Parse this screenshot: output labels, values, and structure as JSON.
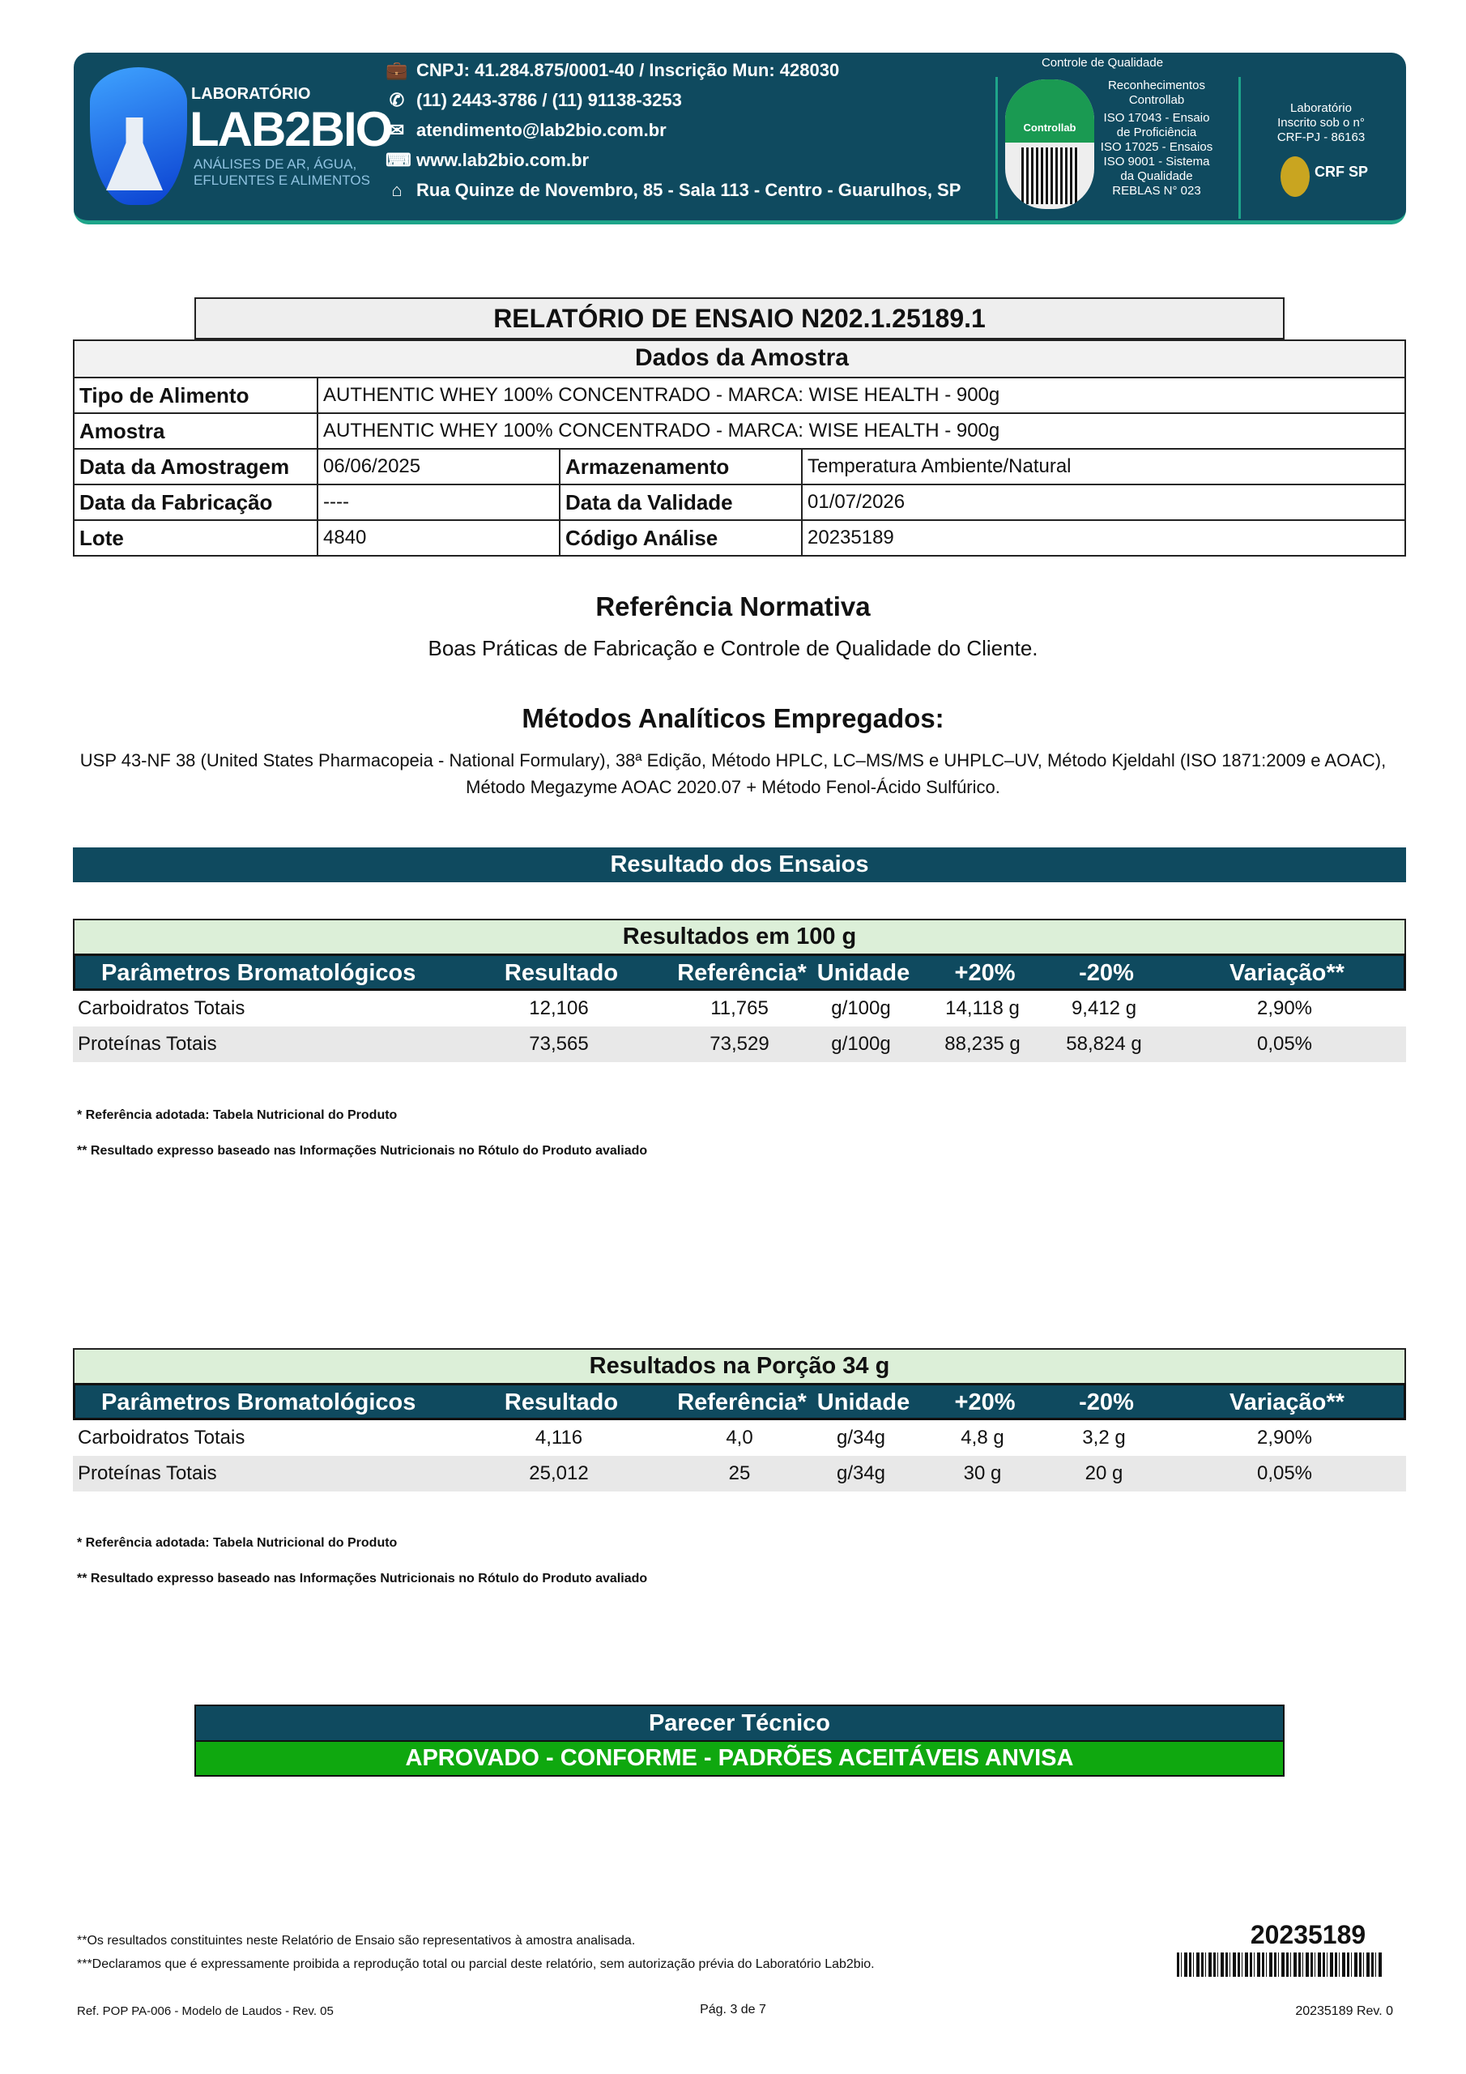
{
  "header": {
    "logo": {
      "line1": "LABORATÓRIO",
      "line2": "LAB2BIO",
      "line3": "ANÁLISES DE AR, ÁGUA,",
      "line4": "EFLUENTES E ALIMENTOS"
    },
    "contacts": [
      {
        "icon": "briefcase-icon",
        "text": "CNPJ: 41.284.875/0001-40  / Inscrição Mun: 428030"
      },
      {
        "icon": "phone-icon",
        "text": "(11) 2443-3786 / (11) 91138-3253"
      },
      {
        "icon": "mail-icon",
        "text": "atendimento@lab2bio.com.br"
      },
      {
        "icon": "web-icon",
        "text": "www.lab2bio.com.br"
      },
      {
        "icon": "home-icon",
        "text": "Rua Quinze de Novembro, 85 - Sala 113 - Centro - Guarulhos, SP"
      }
    ],
    "quality_title": "Controle de Qualidade",
    "controllab": "Controllab",
    "recognitions": [
      "Reconhecimentos",
      "Controllab",
      "ISO 17043 - Ensaio",
      "de Proficiência",
      "ISO 17025 - Ensaios",
      "ISO 9001 - Sistema",
      "da Qualidade",
      "REBLAS N° 023"
    ],
    "crf": [
      "Laboratório",
      "Inscrito sob o n°",
      "CRF-PJ - 86163"
    ],
    "crf_logo": "CRF SP"
  },
  "report_title": "RELATÓRIO DE ENSAIO N202.1.25189.1",
  "sample": {
    "title": "Dados da Amostra",
    "tipo_label": "Tipo de Alimento",
    "tipo": "AUTHENTIC WHEY 100% CONCENTRADO - MARCA: WISE HEALTH - 900g",
    "amostra_label": "Amostra",
    "amostra": "AUTHENTIC WHEY 100% CONCENTRADO - MARCA: WISE HEALTH - 900g",
    "amostragem_label": "Data da Amostragem",
    "amostragem": "06/06/2025",
    "armazenamento_label": "Armazenamento",
    "armazenamento": "Temperatura Ambiente/Natural",
    "fabricacao_label": "Data da Fabricação",
    "fabricacao": "----",
    "validade_label": "Data da Validade",
    "validade": "01/07/2026",
    "lote_label": "Lote",
    "lote": "4840",
    "codigo_label": "Código Análise",
    "codigo": "20235189"
  },
  "referencia": {
    "title": "Referência Normativa",
    "text": "Boas Práticas de Fabricação e Controle de Qualidade do Cliente."
  },
  "metodos": {
    "title": "Métodos Analíticos Empregados:",
    "line1": "USP 43-NF 38 (United States Pharmacopeia - National Formulary), 38ª Edição, Método HPLC, LC–MS/MS e UHPLC–UV, Método Kjeldahl (ISO 1871:2009 e AOAC),",
    "line2": "Método Megazyme AOAC 2020.07 + Método Fenol-Ácido Sulfúrico."
  },
  "results_bar": "Resultado dos Ensaios",
  "columns": [
    "Parâmetros Bromatológicos",
    "Resultado",
    "Referência*",
    "Unidade",
    "+20%",
    "-20%",
    "Variação**"
  ],
  "tables": [
    {
      "title": "Resultados em 100 g",
      "rows": [
        [
          "Carboidratos Totais",
          "12,106",
          "11,765",
          "g/100g",
          "14,118 g",
          "9,412 g",
          "2,90%"
        ],
        [
          "Proteínas Totais",
          "73,565",
          "73,529",
          "g/100g",
          "88,235 g",
          "58,824 g",
          "0,05%"
        ]
      ]
    },
    {
      "title": "Resultados na Porção 34 g",
      "rows": [
        [
          "Carboidratos Totais",
          "4,116",
          "4,0",
          "g/34g",
          "4,8 g",
          "3,2 g",
          "2,90%"
        ],
        [
          "Proteínas Totais",
          "25,012",
          "25",
          "g/34g",
          "30 g",
          "20 g",
          "0,05%"
        ]
      ]
    }
  ],
  "footnotes": [
    "* Referência adotada: Tabela Nutricional do Produto",
    "** Resultado expresso baseado nas Informações Nutricionais no Rótulo do Produto avaliado"
  ],
  "parecer": {
    "title": "Parecer Técnico",
    "result": "APROVADO - CONFORME - PADRÕES ACEITÁVEIS ANVISA",
    "result_color": "#0fa80f"
  },
  "footer": {
    "note1": "**Os resultados constituintes neste Relatório de Ensaio são representativos à amostra analisada.",
    "note2": "***Declaramos que é expressamente proibida a reprodução total ou parcial deste relatório, sem autorização prévia do Laboratório Lab2bio.",
    "barcode_number": "20235189",
    "ref": "Ref. POP PA-006 - Modelo de Laudos  - Rev. 05",
    "page": "Pág. 3 de 7",
    "rev": "20235189 Rev. 0"
  }
}
